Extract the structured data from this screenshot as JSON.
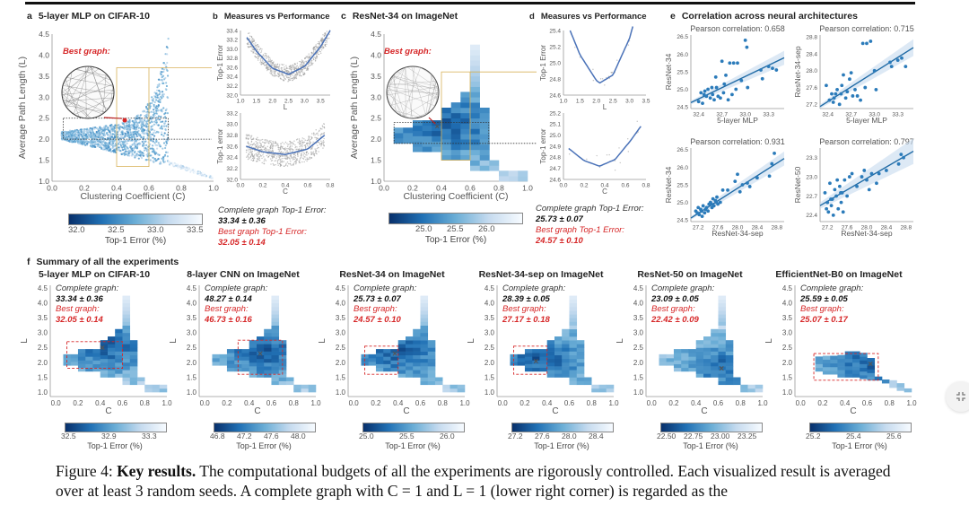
{
  "figure": {
    "panel_a": {
      "letter": "a",
      "title": "5-layer MLP on CIFAR-10",
      "best_graph_label": "Best graph:",
      "xlabel": "Clustering Coefficient (C)",
      "ylabel": "Average Path Length (L)",
      "xticks": [
        "0.0",
        "0.2",
        "0.4",
        "0.6",
        "0.8",
        "1.0"
      ],
      "yticks": [
        "1.0",
        "1.5",
        "2.0",
        "2.5",
        "3.0",
        "3.5",
        "4.0",
        "4.5"
      ],
      "colorbar_ticks": [
        "32.0",
        "32.5",
        "33.0",
        "33.5"
      ],
      "colorbar_label": "Top-1 Error (%)"
    },
    "panel_b": {
      "letter": "b",
      "title": "Measures vs Performance",
      "top": {
        "ylabel": "Top-1 Error",
        "xlabel": "L",
        "xticks": [
          "1.0",
          "1.5",
          "2.0",
          "2.5",
          "3.0",
          "3.5"
        ],
        "yticks": [
          "32.0",
          "32.2",
          "32.4",
          "32.6",
          "32.8",
          "33.0",
          "33.2",
          "33.4"
        ]
      },
      "bottom": {
        "ylabel": "Top-1 error",
        "xlabel": "C",
        "xticks": [
          "0.0",
          "0.2",
          "0.4",
          "0.6",
          "0.8"
        ],
        "yticks": [
          "32.0",
          "32.2",
          "32.4",
          "32.6",
          "32.8",
          "33.0",
          "33.2"
        ]
      },
      "complete_label": "Complete graph Top-1 Error:",
      "complete_value": "33.34 ± 0.36",
      "best_label": "Best graph Top-1 Error:",
      "best_value": "32.05 ± 0.14"
    },
    "panel_c": {
      "letter": "c",
      "title": "ResNet-34 on ImageNet",
      "best_graph_label": "Best graph:",
      "xlabel": "Clustering Coefficient (C)",
      "ylabel": "Average Path Length (L)",
      "xticks": [
        "0.0",
        "0.2",
        "0.4",
        "0.6",
        "0.8",
        "1.0"
      ],
      "yticks": [
        "1.0",
        "1.5",
        "2.0",
        "2.5",
        "3.0",
        "3.5",
        "4.0",
        "4.5"
      ],
      "colorbar_ticks": [
        "25.0",
        "25.5",
        "26.0"
      ],
      "colorbar_label": "Top-1 Error (%)"
    },
    "panel_d": {
      "letter": "d",
      "title": "Measures vs Performance",
      "top": {
        "ylabel": "Top-1 Error",
        "xlabel": "L",
        "xticks": [
          "1.0",
          "1.5",
          "2.0",
          "2.5",
          "3.0",
          "3.5"
        ],
        "yticks": [
          "24.6",
          "24.8",
          "25.0",
          "25.2",
          "25.4"
        ]
      },
      "bottom": {
        "ylabel": "Top-1 error",
        "xlabel": "C",
        "xticks": [
          "0.0",
          "0.2",
          "0.4",
          "0.6",
          "0.8"
        ],
        "yticks": [
          "24.6",
          "24.7",
          "24.8",
          "24.9",
          "25.0",
          "25.1",
          "25.2"
        ]
      },
      "complete_label": "Complete graph Top-1 Error:",
      "complete_value": "25.73 ± 0.07",
      "best_label": "Best graph Top-1 Error:",
      "best_value": "24.57 ± 0.10"
    },
    "panel_e": {
      "letter": "e",
      "title": "Correlation across neural architectures"
    },
    "panel_f": {
      "letter": "f",
      "title": "Summary of all the experiments",
      "complete_label": "Complete graph:",
      "best_label": "Best graph:",
      "xlabel": "C",
      "ylabel": "L",
      "colorbar_label": "Top-1 Error (%)"
    },
    "caption": {
      "prefix": "Figure 4: ",
      "bold": "Key results.",
      "text": " The computational budgets of all the experiments are rigorously controlled. Each visualized result is averaged over at least 3 random seeds. A complete graph with C = 1 and L = 1 (lower right corner) is regarded as the"
    }
  },
  "chart_data": [
    {
      "type": "scatter",
      "id": "a",
      "title": "5-layer MLP on CIFAR-10",
      "xlabel": "Clustering Coefficient (C)",
      "ylabel": "Average Path Length (L)",
      "xlim": [
        0,
        1
      ],
      "ylim": [
        1,
        4.5
      ],
      "color_range": [
        32.0,
        33.6
      ],
      "best_graph": {
        "C": 0.45,
        "L": 2.45
      }
    },
    {
      "type": "scatter",
      "id": "b-top",
      "xlabel": "L",
      "ylabel": "Top-1 Error",
      "xlim": [
        1,
        3.8
      ],
      "ylim": [
        32.0,
        33.4
      ],
      "fit": "quadratic",
      "fit_min": {
        "x": 2.5,
        "y": 32.45
      },
      "fit_points": {
        "x": [
          1.2,
          1.5,
          2.0,
          2.5,
          3.0,
          3.5,
          3.8
        ],
        "y": [
          33.25,
          32.95,
          32.58,
          32.45,
          32.62,
          33.05,
          33.4
        ]
      }
    },
    {
      "type": "scatter",
      "id": "b-bottom",
      "xlabel": "C",
      "ylabel": "Top-1 error",
      "xlim": [
        0,
        0.8
      ],
      "ylim": [
        32.0,
        33.2
      ],
      "fit": "quadratic",
      "fit_points": {
        "x": [
          0.05,
          0.2,
          0.4,
          0.6,
          0.75
        ],
        "y": [
          32.6,
          32.5,
          32.45,
          32.55,
          32.8
        ]
      }
    },
    {
      "type": "heatmap",
      "id": "c",
      "title": "ResNet-34 on ImageNet",
      "xlabel": "Clustering Coefficient (C)",
      "ylabel": "Average Path Length (L)",
      "xlim": [
        0,
        1
      ],
      "ylim": [
        1,
        4.5
      ],
      "color_range": [
        24.6,
        26.4
      ],
      "best_graph": {
        "C": 0.37,
        "L": 2.3
      }
    },
    {
      "type": "line",
      "id": "d-top",
      "xlabel": "L",
      "ylabel": "Top-1 Error",
      "xlim": [
        1,
        3.5
      ],
      "ylim": [
        24.6,
        25.4
      ],
      "fit_points": {
        "x": [
          1.2,
          1.5,
          2.0,
          2.1,
          2.5,
          3.0,
          3.1
        ],
        "y": [
          25.4,
          25.1,
          24.78,
          24.75,
          24.85,
          25.3,
          25.45
        ]
      }
    },
    {
      "type": "line",
      "id": "d-bottom",
      "xlabel": "C",
      "ylabel": "Top-1 error",
      "xlim": [
        0,
        0.8
      ],
      "ylim": [
        24.6,
        25.2
      ],
      "fit_points": {
        "x": [
          0.05,
          0.2,
          0.35,
          0.5,
          0.65,
          0.75
        ],
        "y": [
          24.88,
          24.77,
          24.72,
          24.78,
          24.95,
          25.08
        ]
      }
    },
    {
      "type": "scatter",
      "id": "e1",
      "title": "Pearson correlation: 0.658",
      "xlabel": "5-layer MLP",
      "ylabel": "ResNet-34",
      "xticks": [
        "32.4",
        "32.7",
        "33.0",
        "33.3"
      ],
      "yticks": [
        "24.5",
        "25.0",
        "25.5",
        "26.0",
        "26.5"
      ],
      "xlim": [
        32.3,
        33.5
      ],
      "ylim": [
        24.45,
        26.55
      ],
      "x": [
        32.4,
        32.43,
        32.45,
        32.47,
        32.5,
        32.52,
        32.55,
        32.57,
        32.6,
        32.62,
        32.65,
        32.68,
        32.7,
        32.73,
        32.75,
        32.78,
        32.8,
        32.85,
        32.88,
        32.9,
        32.95,
        33.0,
        33.02,
        33.2,
        33.22,
        33.3,
        33.35,
        33.4,
        32.48,
        32.58,
        32.63,
        32.72,
        32.83,
        33.03
      ],
      "y": [
        24.65,
        24.9,
        24.6,
        24.85,
        24.8,
        25.0,
        24.75,
        25.05,
        24.7,
        25.35,
        24.8,
        24.75,
        25.8,
        25.15,
        25.4,
        24.7,
        25.75,
        25.75,
        25.0,
        25.75,
        25.25,
        26.4,
        26.2,
        25.55,
        25.3,
        25.65,
        25.6,
        25.55,
        24.95,
        24.85,
        25.05,
        24.9,
        24.85,
        25.05
      ],
      "fit": {
        "x": [
          32.3,
          33.5
        ],
        "y": [
          24.62,
          25.9
        ]
      }
    },
    {
      "type": "scatter",
      "id": "e2",
      "title": "Pearson correlation: 0.715",
      "xlabel": "5-layer MLP",
      "ylabel": "ResNet-34-sep",
      "xticks": [
        "32.4",
        "32.7",
        "33.0",
        "33.3"
      ],
      "yticks": [
        "27.2",
        "27.6",
        "28.0",
        "28.4",
        "28.8"
      ],
      "xlim": [
        32.3,
        33.5
      ],
      "ylim": [
        27.1,
        28.85
      ],
      "x": [
        32.38,
        32.42,
        32.45,
        32.47,
        32.5,
        32.52,
        32.55,
        32.58,
        32.6,
        32.63,
        32.65,
        32.68,
        32.7,
        32.72,
        32.75,
        32.78,
        32.82,
        32.85,
        32.88,
        32.9,
        32.95,
        33.0,
        33.02,
        33.2,
        33.22,
        33.3,
        33.35,
        33.4,
        32.48,
        32.57
      ],
      "y": [
        27.65,
        27.3,
        27.45,
        27.25,
        27.45,
        27.55,
        27.2,
        27.65,
        27.9,
        27.35,
        27.5,
        27.8,
        27.95,
        27.4,
        27.55,
        27.4,
        27.3,
        28.65,
        27.6,
        28.65,
        28.7,
        28.0,
        27.55,
        28.2,
        28.1,
        28.25,
        28.3,
        28.1,
        27.35,
        27.45
      ],
      "fit": {
        "x": [
          32.3,
          33.5
        ],
        "y": [
          27.15,
          28.55
        ]
      }
    },
    {
      "type": "scatter",
      "id": "e3",
      "title": "Pearson correlation: 0.931",
      "xlabel": "ResNet-34-sep",
      "ylabel": "ResNet-34",
      "xticks": [
        "27.2",
        "27.6",
        "28.0",
        "28.4",
        "28.8"
      ],
      "yticks": [
        "24.5",
        "25.0",
        "25.5",
        "26.0",
        "26.5"
      ],
      "xlim": [
        27.05,
        28.95
      ],
      "ylim": [
        24.45,
        26.55
      ],
      "x": [
        27.15,
        27.18,
        27.2,
        27.22,
        27.25,
        27.28,
        27.3,
        27.33,
        27.35,
        27.4,
        27.42,
        27.45,
        27.48,
        27.5,
        27.52,
        27.55,
        27.58,
        27.6,
        27.65,
        27.7,
        27.8,
        27.95,
        28.0,
        28.05,
        28.1,
        28.2,
        28.25,
        28.4,
        28.65,
        28.7,
        28.75,
        27.27,
        27.37,
        27.47,
        27.57
      ],
      "y": [
        24.75,
        24.7,
        24.85,
        24.65,
        24.8,
        24.6,
        24.9,
        24.7,
        24.8,
        24.75,
        24.95,
        25.0,
        24.85,
        25.1,
        24.9,
        25.05,
        25.15,
        24.95,
        25.0,
        25.35,
        25.35,
        25.6,
        25.8,
        25.3,
        25.5,
        25.55,
        25.45,
        25.7,
        25.75,
        26.1,
        26.4,
        24.75,
        24.85,
        24.95,
        25.0
      ],
      "fit": {
        "x": [
          27.05,
          28.95
        ],
        "y": [
          24.55,
          26.25
        ]
      }
    },
    {
      "type": "scatter",
      "id": "e4",
      "title": "Pearson correlation: 0.797",
      "xlabel": "ResNet-34-sep",
      "ylabel": "ResNet-50",
      "xticks": [
        "27.2",
        "27.6",
        "28.0",
        "28.4",
        "28.8"
      ],
      "yticks": [
        "22.4",
        "22.7",
        "23.0",
        "23.3"
      ],
      "xlim": [
        27.05,
        28.95
      ],
      "ylim": [
        22.3,
        23.45
      ],
      "x": [
        27.15,
        27.18,
        27.2,
        27.22,
        27.25,
        27.28,
        27.3,
        27.32,
        27.35,
        27.38,
        27.4,
        27.42,
        27.45,
        27.48,
        27.5,
        27.52,
        27.55,
        27.6,
        27.65,
        27.7,
        27.8,
        27.9,
        27.95,
        28.0,
        28.05,
        28.1,
        28.2,
        28.25,
        28.4,
        28.65,
        28.7,
        28.75,
        27.27,
        27.47
      ],
      "y": [
        22.75,
        22.5,
        22.6,
        22.45,
        22.9,
        22.55,
        22.65,
        22.4,
        22.8,
        22.7,
        22.95,
        22.5,
        22.85,
        22.6,
        22.75,
        22.45,
        22.95,
        22.7,
        23.0,
        23.05,
        22.85,
        23.0,
        23.1,
        22.95,
        22.8,
        23.05,
        22.9,
        23.05,
        23.1,
        23.2,
        23.35,
        23.3,
        22.65,
        22.75
      ],
      "fit": {
        "x": [
          27.05,
          28.95
        ],
        "y": [
          22.55,
          23.4
        ]
      }
    },
    {
      "type": "heatmap",
      "id": "f1",
      "title": "5-layer MLP on CIFAR-10",
      "complete": "33.34 ± 0.36",
      "best": "32.05 ± 0.14",
      "colorbar_ticks": [
        "32.5",
        "32.9",
        "33.3"
      ],
      "color_range": [
        32.3,
        33.4
      ],
      "best_graph": {
        "C": 0.42,
        "L": 2.5
      },
      "best_box": {
        "C": [
          0.1,
          0.6
        ],
        "L": [
          1.8,
          2.7
        ]
      }
    },
    {
      "type": "heatmap",
      "id": "f2",
      "title": "8-layer CNN on ImageNet",
      "complete": "48.27 ± 0.14",
      "best": "46.73 ± 0.16",
      "colorbar_ticks": [
        "46.8",
        "47.2",
        "47.6",
        "48.0"
      ],
      "color_range": [
        46.6,
        48.3
      ],
      "best_graph": {
        "C": 0.5,
        "L": 2.3
      },
      "best_box": {
        "C": [
          0.3,
          0.7
        ],
        "L": [
          1.6,
          2.75
        ]
      }
    },
    {
      "type": "heatmap",
      "id": "f3",
      "title": "ResNet-34 on ImageNet",
      "complete": "25.73 ± 0.07",
      "best": "24.57 ± 0.10",
      "colorbar_ticks": [
        "25.0",
        "25.5",
        "26.0"
      ],
      "color_range": [
        24.6,
        26.4
      ],
      "best_graph": {
        "C": 0.37,
        "L": 2.3
      },
      "best_box": {
        "C": [
          0.1,
          0.4
        ],
        "L": [
          1.6,
          2.55
        ]
      }
    },
    {
      "type": "heatmap",
      "id": "f4",
      "title": "ResNet-34-sep on ImageNet",
      "complete": "28.39 ± 0.05",
      "best": "27.17 ± 0.18",
      "colorbar_ticks": [
        "27.2",
        "27.6",
        "28.0",
        "28.4"
      ],
      "color_range": [
        27.2,
        28.7
      ],
      "best_graph": {
        "C": 0.3,
        "L": 2.05
      },
      "best_box": {
        "C": [
          0.1,
          0.4
        ],
        "L": [
          1.6,
          2.55
        ]
      }
    },
    {
      "type": "heatmap",
      "id": "f5",
      "title": "ResNet-50 on ImageNet",
      "complete": "23.09 ± 0.05",
      "best": "22.42 ± 0.09",
      "colorbar_ticks": [
        "22.50",
        "22.75",
        "23.00",
        "23.25"
      ],
      "color_range": [
        22.4,
        23.4
      ],
      "best_graph": {
        "C": 0.63,
        "L": 1.8
      },
      "best_box": null
    },
    {
      "type": "heatmap",
      "id": "f6",
      "title": "EfficientNet-B0 on ImageNet",
      "complete": "25.59 ± 0.05",
      "best": "25.07 ± 0.17",
      "colorbar_ticks": [
        "25.2",
        "25.4",
        "25.6"
      ],
      "color_range": [
        25.0,
        25.7
      ],
      "best_graph": {
        "C": 0.63,
        "L": 1.95
      },
      "best_box": {
        "C": [
          0.12,
          0.7
        ],
        "L": [
          1.4,
          2.3
        ]
      }
    }
  ],
  "ui": {
    "exit_fullscreen_icon": "compress-icon"
  }
}
